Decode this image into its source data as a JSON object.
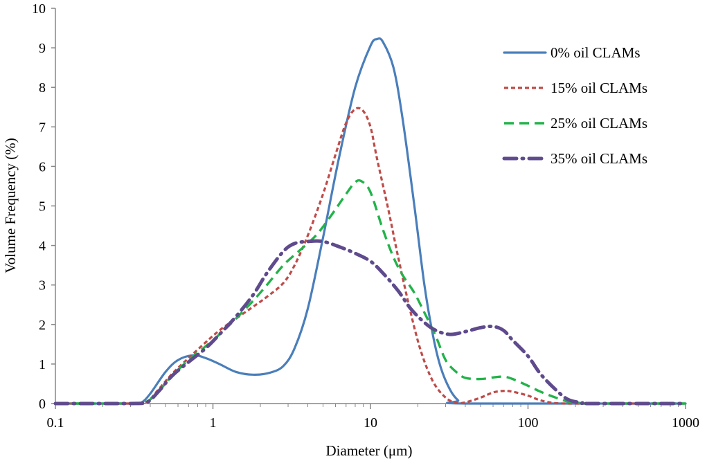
{
  "chart_data": {
    "type": "line",
    "xlabel": "Diameter (μm)",
    "ylabel": "Volume Frequency (%)",
    "xscale": "log",
    "xlim": [
      0.1,
      1000
    ],
    "ylim": [
      0,
      10
    ],
    "x_tick_labels": [
      "0.1",
      "1",
      "10",
      "100",
      "1000"
    ],
    "y_tick_labels": [
      "0",
      "1",
      "2",
      "3",
      "4",
      "5",
      "6",
      "7",
      "8",
      "9",
      "10"
    ],
    "grid": false,
    "legend_position": "top-right",
    "series": [
      {
        "name": "0% oil CLAMs",
        "color": "#4a7ebb",
        "dash": "solid",
        "points": [
          [
            0.1,
            0
          ],
          [
            0.3,
            0
          ],
          [
            0.35,
            0.02
          ],
          [
            0.4,
            0.25
          ],
          [
            0.5,
            0.8
          ],
          [
            0.6,
            1.1
          ],
          [
            0.75,
            1.22
          ],
          [
            0.9,
            1.15
          ],
          [
            1.1,
            1.0
          ],
          [
            1.4,
            0.8
          ],
          [
            1.8,
            0.73
          ],
          [
            2.3,
            0.78
          ],
          [
            2.8,
            0.95
          ],
          [
            3.3,
            1.4
          ],
          [
            4.0,
            2.4
          ],
          [
            5.0,
            4.2
          ],
          [
            6.3,
            6.2
          ],
          [
            8.0,
            8.0
          ],
          [
            10.0,
            9.05
          ],
          [
            11.0,
            9.22
          ],
          [
            12.0,
            9.15
          ],
          [
            14.0,
            8.5
          ],
          [
            16.0,
            7.2
          ],
          [
            19.0,
            5.0
          ],
          [
            22.0,
            3.0
          ],
          [
            25.0,
            1.7
          ],
          [
            28.0,
            0.9
          ],
          [
            32.0,
            0.35
          ],
          [
            36.0,
            0.08
          ],
          [
            40.0,
            0
          ],
          [
            1000,
            0
          ]
        ]
      },
      {
        "name": "15% oil CLAMs",
        "color": "#be4b48",
        "dash": "short-dash",
        "points": [
          [
            0.1,
            0
          ],
          [
            0.3,
            0
          ],
          [
            0.38,
            0.05
          ],
          [
            0.45,
            0.35
          ],
          [
            0.55,
            0.75
          ],
          [
            0.7,
            1.15
          ],
          [
            0.9,
            1.55
          ],
          [
            1.1,
            1.85
          ],
          [
            1.4,
            2.15
          ],
          [
            1.8,
            2.45
          ],
          [
            2.2,
            2.7
          ],
          [
            2.8,
            3.05
          ],
          [
            3.3,
            3.5
          ],
          [
            4.0,
            4.25
          ],
          [
            5.0,
            5.3
          ],
          [
            6.0,
            6.3
          ],
          [
            7.0,
            7.1
          ],
          [
            8.0,
            7.45
          ],
          [
            9.0,
            7.4
          ],
          [
            10.0,
            7.0
          ],
          [
            11.0,
            6.2
          ],
          [
            13.0,
            4.9
          ],
          [
            15.0,
            3.7
          ],
          [
            18.0,
            2.3
          ],
          [
            21.0,
            1.3
          ],
          [
            25.0,
            0.55
          ],
          [
            30.0,
            0.15
          ],
          [
            35.0,
            0.02
          ],
          [
            40.0,
            0.03
          ],
          [
            50.0,
            0.15
          ],
          [
            60.0,
            0.28
          ],
          [
            70.0,
            0.32
          ],
          [
            80.0,
            0.3
          ],
          [
            100.0,
            0.2
          ],
          [
            120.0,
            0.08
          ],
          [
            150.0,
            0.01
          ],
          [
            200,
            0
          ],
          [
            1000,
            0
          ]
        ]
      },
      {
        "name": "25% oil CLAMs",
        "color": "#22b34a",
        "dash": "long-dash",
        "points": [
          [
            0.1,
            0
          ],
          [
            0.3,
            0
          ],
          [
            0.38,
            0.05
          ],
          [
            0.45,
            0.3
          ],
          [
            0.55,
            0.7
          ],
          [
            0.7,
            1.1
          ],
          [
            0.9,
            1.45
          ],
          [
            1.1,
            1.75
          ],
          [
            1.4,
            2.15
          ],
          [
            1.8,
            2.6
          ],
          [
            2.2,
            3.0
          ],
          [
            2.8,
            3.5
          ],
          [
            3.5,
            3.85
          ],
          [
            4.5,
            4.25
          ],
          [
            5.5,
            4.7
          ],
          [
            7.0,
            5.3
          ],
          [
            8.0,
            5.6
          ],
          [
            8.8,
            5.62
          ],
          [
            10.0,
            5.35
          ],
          [
            12.0,
            4.4
          ],
          [
            14.0,
            3.7
          ],
          [
            16.0,
            3.25
          ],
          [
            19.0,
            2.8
          ],
          [
            22.0,
            2.3
          ],
          [
            26.0,
            1.7
          ],
          [
            30.0,
            1.1
          ],
          [
            35.0,
            0.8
          ],
          [
            40.0,
            0.65
          ],
          [
            50.0,
            0.62
          ],
          [
            60.0,
            0.66
          ],
          [
            70.0,
            0.68
          ],
          [
            80.0,
            0.62
          ],
          [
            100.0,
            0.45
          ],
          [
            120.0,
            0.3
          ],
          [
            150.0,
            0.15
          ],
          [
            180.0,
            0.05
          ],
          [
            220.0,
            0.01
          ],
          [
            250,
            0
          ],
          [
            1000,
            0
          ]
        ]
      },
      {
        "name": "35% oil CLAMs",
        "color": "#5e4a8c",
        "dash": "dash-dot",
        "points": [
          [
            0.1,
            0
          ],
          [
            0.3,
            0
          ],
          [
            0.38,
            0.03
          ],
          [
            0.45,
            0.3
          ],
          [
            0.55,
            0.7
          ],
          [
            0.7,
            1.05
          ],
          [
            0.9,
            1.4
          ],
          [
            1.1,
            1.75
          ],
          [
            1.4,
            2.2
          ],
          [
            1.8,
            2.75
          ],
          [
            2.2,
            3.3
          ],
          [
            2.8,
            3.85
          ],
          [
            3.3,
            4.05
          ],
          [
            4.0,
            4.1
          ],
          [
            5.0,
            4.1
          ],
          [
            6.5,
            3.95
          ],
          [
            8.0,
            3.8
          ],
          [
            10.0,
            3.6
          ],
          [
            12.0,
            3.3
          ],
          [
            15.0,
            2.85
          ],
          [
            18.0,
            2.4
          ],
          [
            22.0,
            2.05
          ],
          [
            26.0,
            1.85
          ],
          [
            32.0,
            1.75
          ],
          [
            40.0,
            1.82
          ],
          [
            50.0,
            1.92
          ],
          [
            60.0,
            1.95
          ],
          [
            70.0,
            1.85
          ],
          [
            80.0,
            1.6
          ],
          [
            100.0,
            1.2
          ],
          [
            120.0,
            0.75
          ],
          [
            150.0,
            0.35
          ],
          [
            180.0,
            0.1
          ],
          [
            220.0,
            0.02
          ],
          [
            250,
            0
          ],
          [
            1000,
            0
          ]
        ]
      }
    ]
  }
}
